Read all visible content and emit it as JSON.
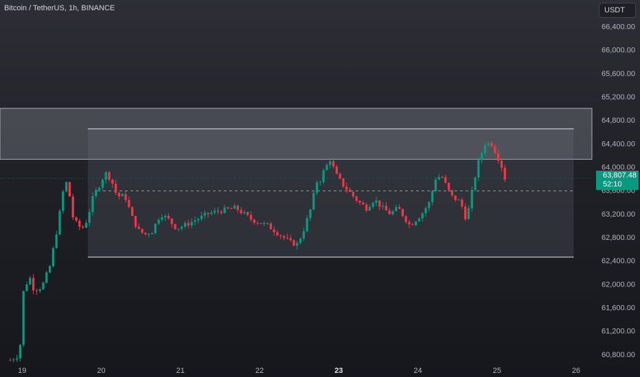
{
  "header": {
    "symbol_title": "Bitcoin / TetherUS, 1h, BINANCE",
    "currency_button": "USDT"
  },
  "last_price": {
    "value": "63,807.48",
    "countdown": "52:10",
    "numeric": 63807.48
  },
  "colors": {
    "up": "#089981",
    "down": "#f23645",
    "last_price_bg": "#089981",
    "zone_fill": "#9598a1",
    "range_line": "#d1d4dc"
  },
  "chart_data": {
    "type": "candlestick",
    "y_axis": {
      "ticks": [
        66400,
        66000,
        65600,
        65200,
        64800,
        64400,
        64000,
        63600,
        63200,
        62800,
        62400,
        62000,
        61600,
        61200,
        60800
      ],
      "tick_labels": [
        "66,400.00",
        "66,000.00",
        "65,600.00",
        "65,200.00",
        "64,800.00",
        "64,400.00",
        "64,000.00",
        "63,600.00",
        "63,200.00",
        "62,800.00",
        "62,400.00",
        "62,000.00",
        "61,600.00",
        "61,200.00",
        "60,800.00"
      ],
      "range": [
        60670,
        66850
      ]
    },
    "x_axis": {
      "ticks": [
        19,
        20,
        21,
        22,
        23,
        24,
        25,
        26
      ],
      "tick_labels": [
        "19",
        "20",
        "21",
        "22",
        "23",
        "24",
        "25",
        "26"
      ],
      "bold_tick": "23",
      "range": [
        18.72,
        26.2
      ]
    },
    "resistance_zone": {
      "top": 65000,
      "bottom": 64130
    },
    "range_box": {
      "x_start": 19.83,
      "x_end": 25.97,
      "top": 64650,
      "bottom": 62460,
      "mid": 63590
    },
    "candles_note": "hourly BTC/USDT from day 18.85 to 25.1",
    "waypoints": [
      [
        18.85,
        60700
      ],
      [
        18.97,
        60800
      ],
      [
        19.0,
        61800
      ],
      [
        19.05,
        62000
      ],
      [
        19.1,
        62100
      ],
      [
        19.15,
        61900
      ],
      [
        19.25,
        61950
      ],
      [
        19.35,
        62300
      ],
      [
        19.45,
        63000
      ],
      [
        19.52,
        63600
      ],
      [
        19.58,
        63800
      ],
      [
        19.62,
        63200
      ],
      [
        19.7,
        63000
      ],
      [
        19.76,
        62950
      ],
      [
        19.82,
        63100
      ],
      [
        19.9,
        63500
      ],
      [
        19.98,
        63700
      ],
      [
        20.05,
        63900
      ],
      [
        20.12,
        63800
      ],
      [
        20.2,
        63500
      ],
      [
        20.3,
        63500
      ],
      [
        20.4,
        63100
      ],
      [
        20.48,
        62900
      ],
      [
        20.56,
        62850
      ],
      [
        20.64,
        62900
      ],
      [
        20.75,
        63200
      ],
      [
        20.85,
        63100
      ],
      [
        20.95,
        62950
      ],
      [
        21.05,
        63000
      ],
      [
        21.2,
        63100
      ],
      [
        21.35,
        63200
      ],
      [
        21.5,
        63250
      ],
      [
        21.7,
        63300
      ],
      [
        21.9,
        63100
      ],
      [
        22.0,
        63050
      ],
      [
        22.1,
        63000
      ],
      [
        22.2,
        62900
      ],
      [
        22.3,
        62800
      ],
      [
        22.4,
        62700
      ],
      [
        22.48,
        62680
      ],
      [
        22.55,
        62900
      ],
      [
        22.65,
        63300
      ],
      [
        22.72,
        63750
      ],
      [
        22.76,
        63750
      ],
      [
        22.8,
        63900
      ],
      [
        22.9,
        64150
      ],
      [
        22.95,
        63900
      ],
      [
        23.05,
        63700
      ],
      [
        23.15,
        63550
      ],
      [
        23.25,
        63400
      ],
      [
        23.35,
        63300
      ],
      [
        23.45,
        63450
      ],
      [
        23.55,
        63300
      ],
      [
        23.65,
        63200
      ],
      [
        23.75,
        63300
      ],
      [
        23.85,
        63100
      ],
      [
        23.9,
        63000
      ],
      [
        24.05,
        63200
      ],
      [
        24.15,
        63400
      ],
      [
        24.22,
        63800
      ],
      [
        24.3,
        63850
      ],
      [
        24.42,
        63500
      ],
      [
        24.48,
        63450
      ],
      [
        24.54,
        63400
      ],
      [
        24.6,
        63150
      ],
      [
        24.65,
        63300
      ],
      [
        24.7,
        63700
      ],
      [
        24.77,
        64100
      ],
      [
        24.85,
        64400
      ],
      [
        24.93,
        64400
      ],
      [
        25.0,
        64200
      ],
      [
        25.05,
        64050
      ],
      [
        25.1,
        63807
      ]
    ]
  }
}
